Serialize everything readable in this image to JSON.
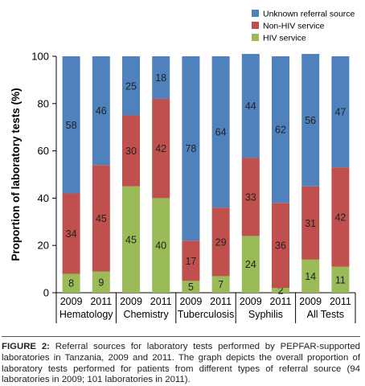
{
  "chart_data": {
    "type": "bar",
    "stacked": true,
    "ylabel": "Proportion of laboratory tests (%)",
    "ylim": [
      0,
      100
    ],
    "yticks": [
      0,
      20,
      40,
      60,
      80,
      100
    ],
    "groups": [
      "Hematology",
      "Chemistry",
      "Tuberculosis",
      "Syphilis",
      "All Tests"
    ],
    "categories": [
      "2009",
      "2011",
      "2009",
      "2011",
      "2009",
      "2011",
      "2009",
      "2011",
      "2009",
      "2011"
    ],
    "series": [
      {
        "name": "HIV service",
        "color": "#9bbb59",
        "values": [
          8,
          9,
          45,
          40,
          5,
          7,
          24,
          2,
          14,
          11
        ]
      },
      {
        "name": "Non-HIV service",
        "color": "#c0504d",
        "values": [
          34,
          45,
          30,
          42,
          17,
          29,
          33,
          36,
          31,
          42
        ]
      },
      {
        "name": "Unknown referral source",
        "color": "#4f81bd",
        "values": [
          58,
          46,
          25,
          18,
          78,
          64,
          44,
          62,
          56,
          47
        ]
      }
    ],
    "legend_position": "top-right",
    "legend_order": [
      "Unknown referral source",
      "Non-HIV service",
      "HIV service"
    ]
  },
  "caption": {
    "label": "FIGURE 2:",
    "text": " Referral sources for laboratory tests performed by PEPFAR-supported laboratories in Tanzania, 2009 and 2011. The graph depicts the overall proportion of laboratory tests performed for patients from different types of referral source (94 laboratories in 2009; 101 laboratories in 2011)."
  }
}
